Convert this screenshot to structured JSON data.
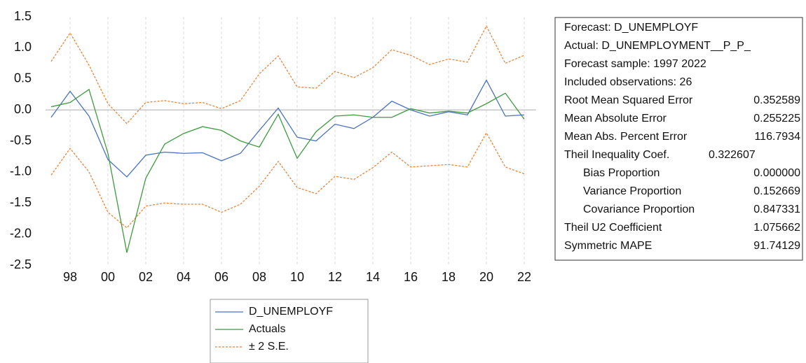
{
  "chart_data": {
    "type": "line",
    "categories": [
      null,
      "98",
      null,
      "00",
      null,
      "02",
      null,
      "04",
      null,
      "06",
      null,
      "08",
      null,
      "10",
      null,
      "12",
      null,
      "14",
      null,
      "16",
      null,
      "18",
      null,
      "20",
      null,
      "22"
    ],
    "ylim": [
      -2.5,
      1.5
    ],
    "yticks": [
      1.5,
      {
        "value": 1,
        "label": "1.0"
      },
      0.5,
      {
        "value": 0,
        "label": "0.0"
      },
      -0.5,
      {
        "value": -1,
        "label": "-1.0"
      },
      -1.5,
      {
        "value": -2,
        "label": "-2.0"
      },
      -2.5
    ],
    "zero_line": true,
    "series": [
      {
        "name": "D_UNEMPLOYF",
        "color": "#4a72c0",
        "values": [
          -0.12,
          0.3,
          -0.1,
          -0.8,
          -1.08,
          -0.73,
          -0.68,
          -0.7,
          -0.69,
          -0.82,
          -0.7,
          -0.33,
          0.03,
          -0.44,
          -0.5,
          -0.23,
          -0.3,
          -0.12,
          0.14,
          0.0,
          -0.1,
          -0.03,
          -0.08,
          0.48,
          -0.1,
          -0.08
        ]
      },
      {
        "name": "Actuals",
        "color": "#3f9a3f",
        "values": [
          0.05,
          0.12,
          0.33,
          -0.7,
          -2.3,
          -1.1,
          -0.55,
          -0.38,
          -0.27,
          -0.33,
          -0.5,
          -0.6,
          -0.07,
          -0.78,
          -0.35,
          -0.1,
          -0.08,
          -0.12,
          -0.12,
          0.02,
          -0.05,
          -0.02,
          -0.05,
          0.1,
          0.27,
          -0.15
        ]
      }
    ],
    "band": {
      "name": "± 2 S.E.",
      "color": "#e8843c",
      "dashed": true,
      "upper": [
        0.78,
        1.24,
        0.72,
        0.1,
        -0.22,
        0.12,
        0.15,
        0.1,
        0.12,
        0.02,
        0.15,
        0.58,
        0.87,
        0.37,
        0.35,
        0.62,
        0.52,
        0.68,
        0.97,
        0.88,
        0.73,
        0.82,
        0.77,
        1.35,
        0.75,
        0.88
      ],
      "lower": [
        -1.05,
        -0.62,
        -1.0,
        -1.65,
        -1.9,
        -1.55,
        -1.5,
        -1.52,
        -1.52,
        -1.65,
        -1.52,
        -1.23,
        -0.83,
        -1.25,
        -1.35,
        -1.07,
        -1.12,
        -0.93,
        -0.68,
        -0.92,
        -0.9,
        -0.88,
        -0.92,
        -0.37,
        -0.92,
        -1.03
      ]
    },
    "stats": [
      {
        "label": "Forecast: D_UNEMPLOYF"
      },
      {
        "label": "Actual: D_UNEMPLOYMENT__P_P_"
      },
      {
        "label": "Forecast sample: 1997 2022"
      },
      {
        "label": "Included observations: 26"
      },
      {
        "label": "Root Mean Squared Error",
        "value": "0.352589"
      },
      {
        "label": "Mean Absolute Error",
        "value": "0.255225"
      },
      {
        "label": "Mean Abs. Percent Error",
        "value": "116.7934"
      },
      {
        "label": "Theil Inequality Coef.",
        "value": "0.322607",
        "inline": true
      },
      {
        "label": "Bias Proportion",
        "value": "0.000000",
        "indent": true
      },
      {
        "label": "Variance Proportion",
        "value": "0.152669",
        "indent": true
      },
      {
        "label": "Covariance Proportion",
        "value": "0.847331",
        "indent": true
      },
      {
        "label": "Theil U2 Coefficient",
        "value": "1.075662"
      },
      {
        "label": "Symmetric MAPE",
        "value": "91.74129"
      }
    ]
  }
}
